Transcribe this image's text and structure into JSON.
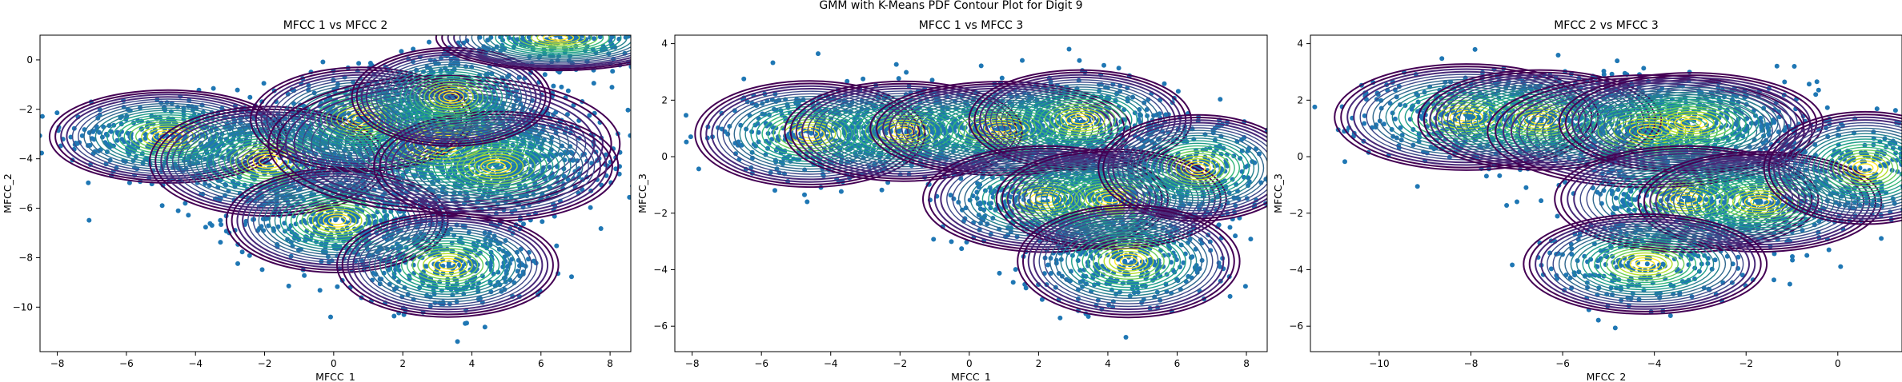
{
  "figure": {
    "title": "GMM with K-Means PDF Contour Plot for Digit 9"
  },
  "chart_data": [
    {
      "type": "scatter",
      "title": "MFCC 1 vs MFCC 2",
      "xlabel": "MFCC_1",
      "ylabel": "MFCC_2",
      "xlim": [
        -8.5,
        8.6
      ],
      "ylim": [
        -11.8,
        1.0
      ],
      "xticks": [
        -8,
        -6,
        -4,
        -2,
        0,
        2,
        4,
        6,
        8
      ],
      "yticks": [
        0,
        -2,
        -4,
        -6,
        -8,
        -10
      ],
      "grid": false,
      "point_color": "#1f77b4",
      "components": [
        {
          "mean": [
            -4.8,
            -3.1
          ],
          "sd": [
            1.55,
            0.85
          ]
        },
        {
          "mean": [
            -1.9,
            -4.1
          ],
          "sd": [
            1.55,
            1.0
          ]
        },
        {
          "mean": [
            0.1,
            -6.5
          ],
          "sd": [
            1.45,
            0.95
          ]
        },
        {
          "mean": [
            0.8,
            -2.4
          ],
          "sd": [
            1.45,
            0.95
          ]
        },
        {
          "mean": [
            3.2,
            -3.4
          ],
          "sd": [
            2.3,
            1.25
          ]
        },
        {
          "mean": [
            4.7,
            -4.3
          ],
          "sd": [
            1.6,
            1.0
          ]
        },
        {
          "mean": [
            3.4,
            -1.5
          ],
          "sd": [
            1.3,
            0.9
          ]
        },
        {
          "mean": [
            3.3,
            -8.3
          ],
          "sd": [
            1.45,
            0.95
          ]
        },
        {
          "mean": [
            6.5,
            0.9
          ],
          "sd": [
            1.6,
            0.6
          ]
        }
      ]
    },
    {
      "type": "scatter",
      "title": "MFCC 1 vs MFCC 3",
      "xlabel": "MFCC_1",
      "ylabel": "MFCC_3",
      "xlim": [
        -8.5,
        8.6
      ],
      "ylim": [
        -6.9,
        4.3
      ],
      "xticks": [
        -8,
        -6,
        -4,
        -2,
        0,
        2,
        4,
        6,
        8
      ],
      "yticks": [
        4,
        2,
        0,
        -2,
        -4,
        -6
      ],
      "grid": false,
      "point_color": "#1f77b4",
      "components": [
        {
          "mean": [
            -4.6,
            0.8
          ],
          "sd": [
            1.5,
            0.85
          ]
        },
        {
          "mean": [
            -1.9,
            0.9
          ],
          "sd": [
            1.55,
            0.8
          ]
        },
        {
          "mean": [
            0.9,
            1.0
          ],
          "sd": [
            1.7,
            0.75
          ]
        },
        {
          "mean": [
            3.2,
            1.3
          ],
          "sd": [
            1.45,
            0.8
          ]
        },
        {
          "mean": [
            2.2,
            -1.5
          ],
          "sd": [
            1.6,
            0.85
          ]
        },
        {
          "mean": [
            4.1,
            -1.5
          ],
          "sd": [
            1.5,
            0.8
          ]
        },
        {
          "mean": [
            6.6,
            -0.4
          ],
          "sd": [
            1.3,
            0.85
          ]
        },
        {
          "mean": [
            4.6,
            -3.7
          ],
          "sd": [
            1.45,
            0.9
          ]
        }
      ]
    },
    {
      "type": "scatter",
      "title": "MFCC 2 vs MFCC 3",
      "xlabel": "MFCC_2",
      "ylabel": "MFCC_3",
      "xlim": [
        -11.5,
        1.4
      ],
      "ylim": [
        -6.9,
        4.3
      ],
      "xticks": [
        -10,
        -8,
        -6,
        -4,
        -2,
        0
      ],
      "yticks": [
        4,
        2,
        0,
        -2,
        -4,
        -6
      ],
      "grid": false,
      "point_color": "#1f77b4",
      "components": [
        {
          "mean": [
            -8.1,
            1.4
          ],
          "sd": [
            1.3,
            0.85
          ]
        },
        {
          "mean": [
            -6.5,
            1.3
          ],
          "sd": [
            1.2,
            0.8
          ]
        },
        {
          "mean": [
            -4.1,
            0.9
          ],
          "sd": [
            1.6,
            0.9
          ]
        },
        {
          "mean": [
            -3.2,
            1.2
          ],
          "sd": [
            1.3,
            0.8
          ]
        },
        {
          "mean": [
            -3.3,
            -1.5
          ],
          "sd": [
            1.3,
            0.85
          ]
        },
        {
          "mean": [
            -1.7,
            -1.6
          ],
          "sd": [
            1.2,
            0.8
          ]
        },
        {
          "mean": [
            -4.2,
            -3.8
          ],
          "sd": [
            1.2,
            0.8
          ]
        },
        {
          "mean": [
            0.6,
            -0.4
          ],
          "sd": [
            1.0,
            0.9
          ]
        }
      ]
    }
  ]
}
